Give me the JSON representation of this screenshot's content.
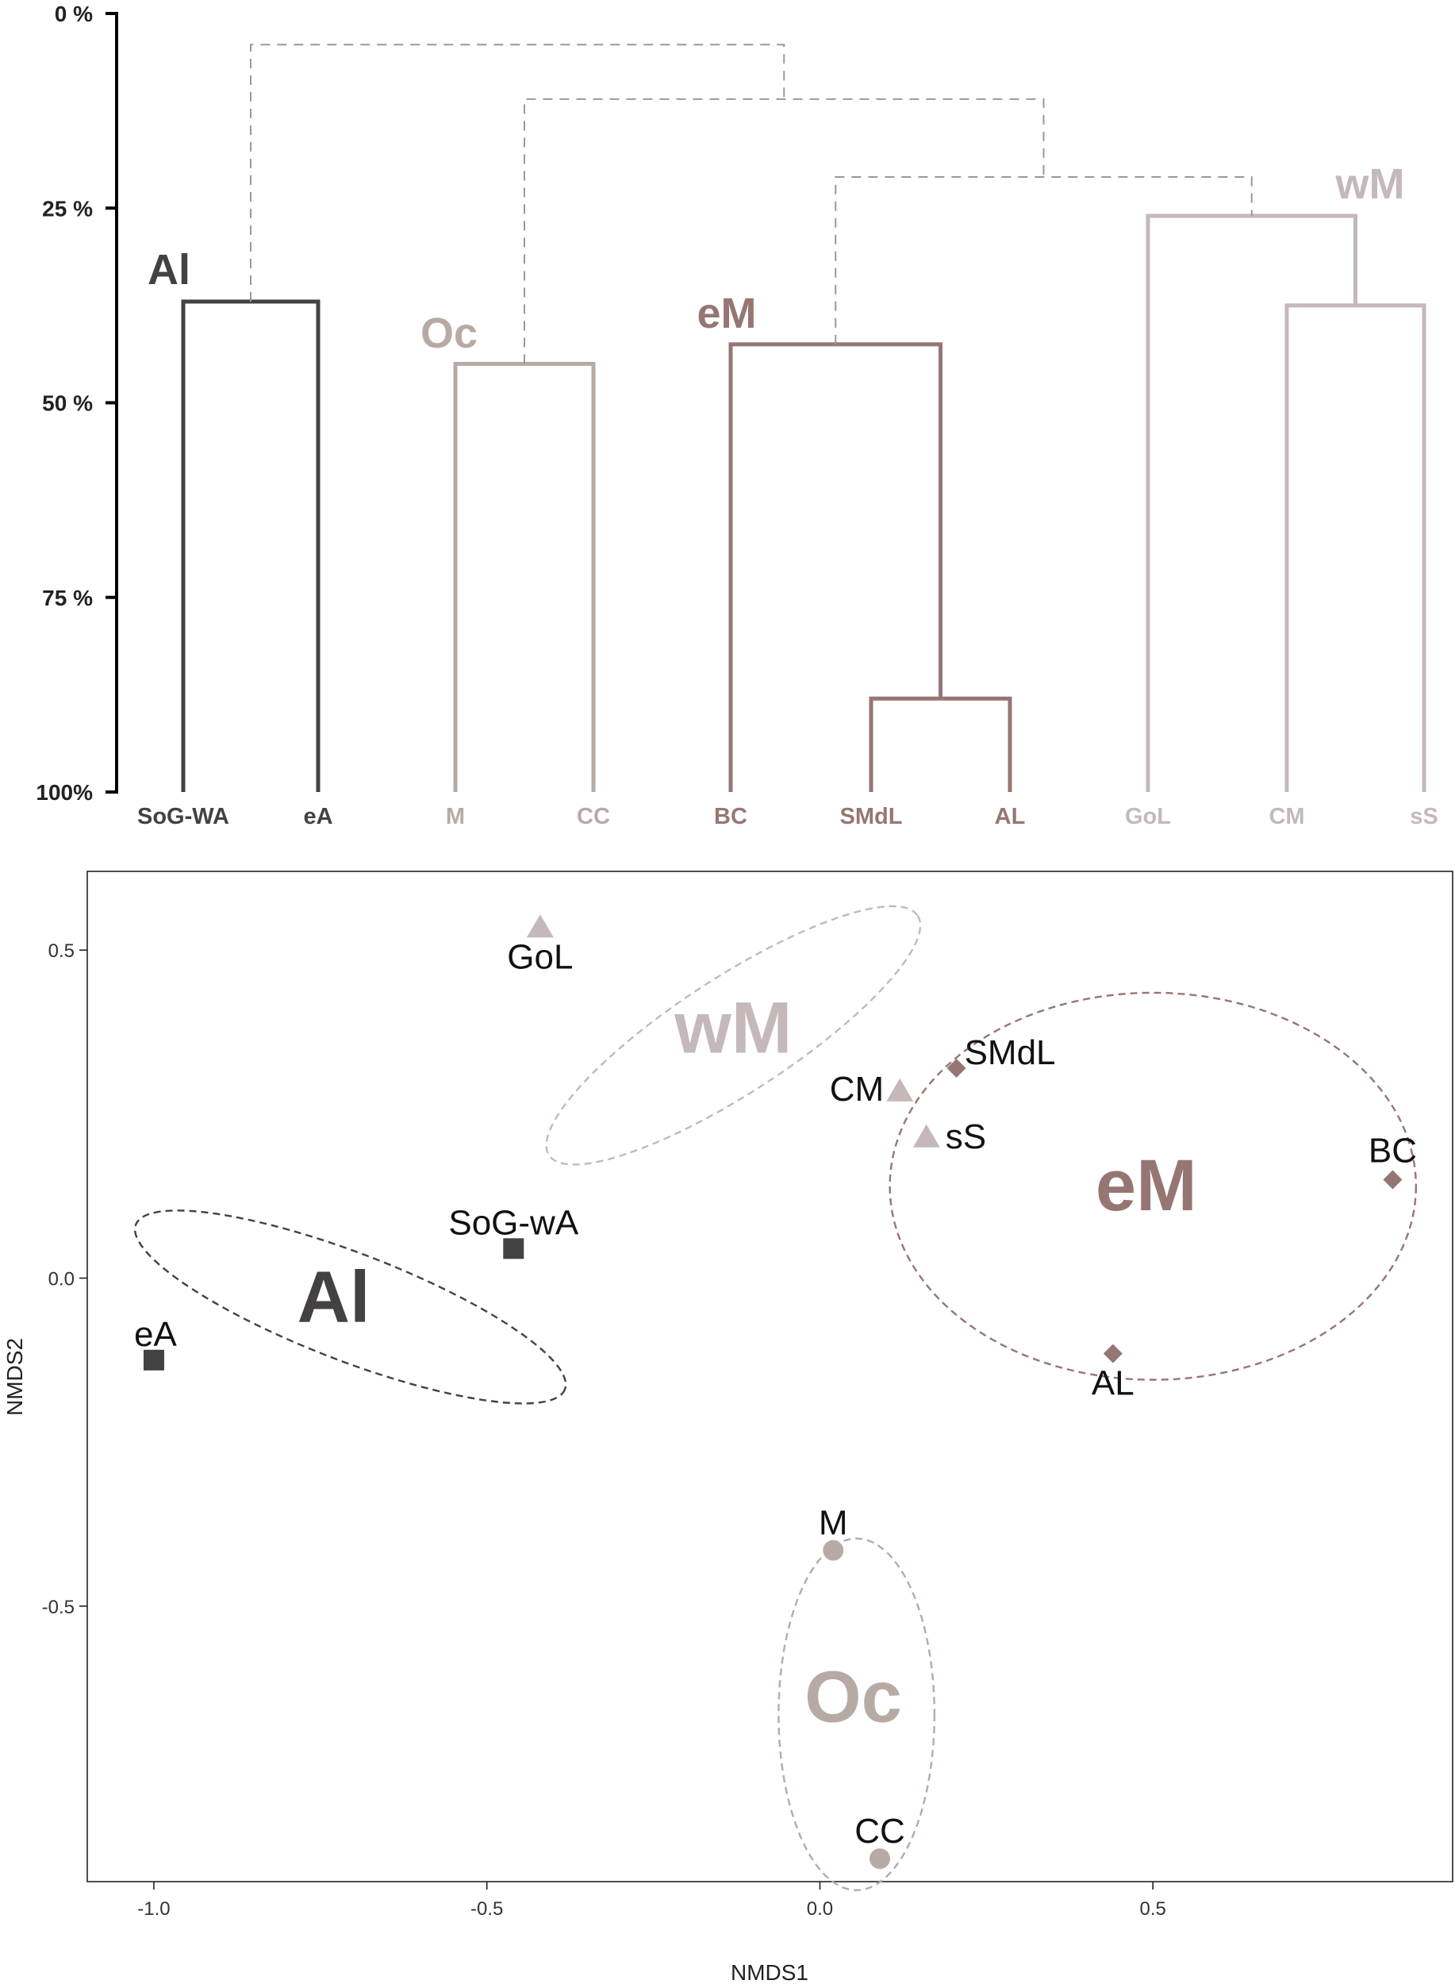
{
  "colors": {
    "Al": "#444141",
    "Oc": "#b7aaa5",
    "eM": "#967673",
    "wM": "#c4b8ba",
    "axis": "#000000",
    "dash": "#999999",
    "tick_text": "#222222",
    "point_label": "#111111"
  },
  "chart_data": [
    {
      "type": "dendrogram",
      "title": "",
      "ylabel": "",
      "y_ticks": [
        "0 %",
        "25 %",
        "50 %",
        "75 %",
        "100%"
      ],
      "ylim": [
        0,
        100
      ],
      "y_direction": "down",
      "leaves": [
        {
          "label": "SoG-WA",
          "group": "Al"
        },
        {
          "label": "eA",
          "group": "Al"
        },
        {
          "label": "M",
          "group": "Oc"
        },
        {
          "label": "CC",
          "group": "Oc"
        },
        {
          "label": "BC",
          "group": "eM"
        },
        {
          "label": "SMdL",
          "group": "eM"
        },
        {
          "label": "AL",
          "group": "eM"
        },
        {
          "label": "GoL",
          "group": "wM"
        },
        {
          "label": "CM",
          "group": "wM"
        },
        {
          "label": "sS",
          "group": "wM"
        }
      ],
      "merges": [
        {
          "id": "n1",
          "children": [
            "SMdL",
            "AL"
          ],
          "similarity": 88,
          "group": "eM",
          "style": "solid"
        },
        {
          "id": "n2",
          "children": [
            "BC",
            "n1"
          ],
          "similarity": 42.5,
          "group": "eM",
          "style": "solid"
        },
        {
          "id": "n3",
          "children": [
            "CM",
            "sS"
          ],
          "similarity": 37.5,
          "group": "wM",
          "style": "solid"
        },
        {
          "id": "n4",
          "children": [
            "GoL",
            "n3"
          ],
          "similarity": 26,
          "group": "wM",
          "style": "solid"
        },
        {
          "id": "n5",
          "children": [
            "SoG-WA",
            "eA"
          ],
          "similarity": 37,
          "group": "Al",
          "style": "solid"
        },
        {
          "id": "n6",
          "children": [
            "M",
            "CC"
          ],
          "similarity": 45,
          "group": "Oc",
          "style": "solid"
        },
        {
          "id": "n7",
          "children": [
            "n2",
            "n4"
          ],
          "similarity": 21,
          "group": null,
          "style": "dashed"
        },
        {
          "id": "n8",
          "children": [
            "n6",
            "n7"
          ],
          "similarity": 11,
          "group": null,
          "style": "dashed"
        },
        {
          "id": "n9",
          "children": [
            "n5",
            "n8"
          ],
          "similarity": 4,
          "group": null,
          "style": "dashed"
        }
      ],
      "cluster_labels": [
        {
          "text": "Al",
          "group": "Al"
        },
        {
          "text": "Oc",
          "group": "Oc"
        },
        {
          "text": "eM",
          "group": "eM"
        },
        {
          "text": "wM",
          "group": "wM"
        }
      ]
    },
    {
      "type": "scatter",
      "title": "",
      "xlabel": "NMDS1",
      "ylabel": "NMDS2",
      "xlim": [
        -1.1,
        0.95
      ],
      "ylim": [
        -0.92,
        0.62
      ],
      "x_ticks": [
        -1.0,
        -0.5,
        0.0,
        0.5
      ],
      "x_tick_labels": [
        "-1.0",
        "-0.5",
        "0.0",
        "0.5"
      ],
      "y_ticks": [
        0.5,
        0.0,
        -0.5
      ],
      "y_tick_labels": [
        "0.5",
        "0.0",
        "-0.5"
      ],
      "grid": false,
      "groups": [
        {
          "name": "Al",
          "marker": "square",
          "ellipse": {
            "cx": -0.705,
            "cy": -0.044,
            "rx": 0.345,
            "ry": 0.082,
            "angle": 21
          },
          "label_pos": [
            -0.73,
            -0.03
          ]
        },
        {
          "name": "wM",
          "marker": "triangle",
          "ellipse": {
            "cx": -0.13,
            "cy": 0.37,
            "rx": 0.33,
            "ry": 0.088,
            "angle": -33
          },
          "label_pos": [
            -0.13,
            0.38
          ]
        },
        {
          "name": "eM",
          "marker": "diamond",
          "ellipse": {
            "cx": 0.5,
            "cy": 0.14,
            "rx": 0.395,
            "ry": 0.295,
            "angle": 0
          },
          "label_pos": [
            0.49,
            0.14
          ]
        },
        {
          "name": "Oc",
          "marker": "circle",
          "ellipse": {
            "cx": 0.055,
            "cy": -0.665,
            "rx": 0.117,
            "ry": 0.268,
            "angle": 0
          },
          "label_pos": [
            0.05,
            -0.64
          ]
        }
      ],
      "points": [
        {
          "label": "SoG-wA",
          "group": "Al",
          "x": -0.46,
          "y": 0.045
        },
        {
          "label": "eA",
          "group": "Al",
          "x": -1.0,
          "y": -0.125
        },
        {
          "label": "GoL",
          "group": "wM",
          "x": -0.42,
          "y": 0.535
        },
        {
          "label": "CM",
          "group": "wM",
          "x": 0.12,
          "y": 0.285
        },
        {
          "label": "sS",
          "group": "wM",
          "x": 0.16,
          "y": 0.215
        },
        {
          "label": "SMdL",
          "group": "eM",
          "x": 0.205,
          "y": 0.32
        },
        {
          "label": "BC",
          "group": "eM",
          "x": 0.86,
          "y": 0.15
        },
        {
          "label": "AL",
          "group": "eM",
          "x": 0.44,
          "y": -0.115
        },
        {
          "label": "M",
          "group": "Oc",
          "x": 0.02,
          "y": -0.415
        },
        {
          "label": "CC",
          "group": "Oc",
          "x": 0.09,
          "y": -0.885
        }
      ]
    }
  ]
}
